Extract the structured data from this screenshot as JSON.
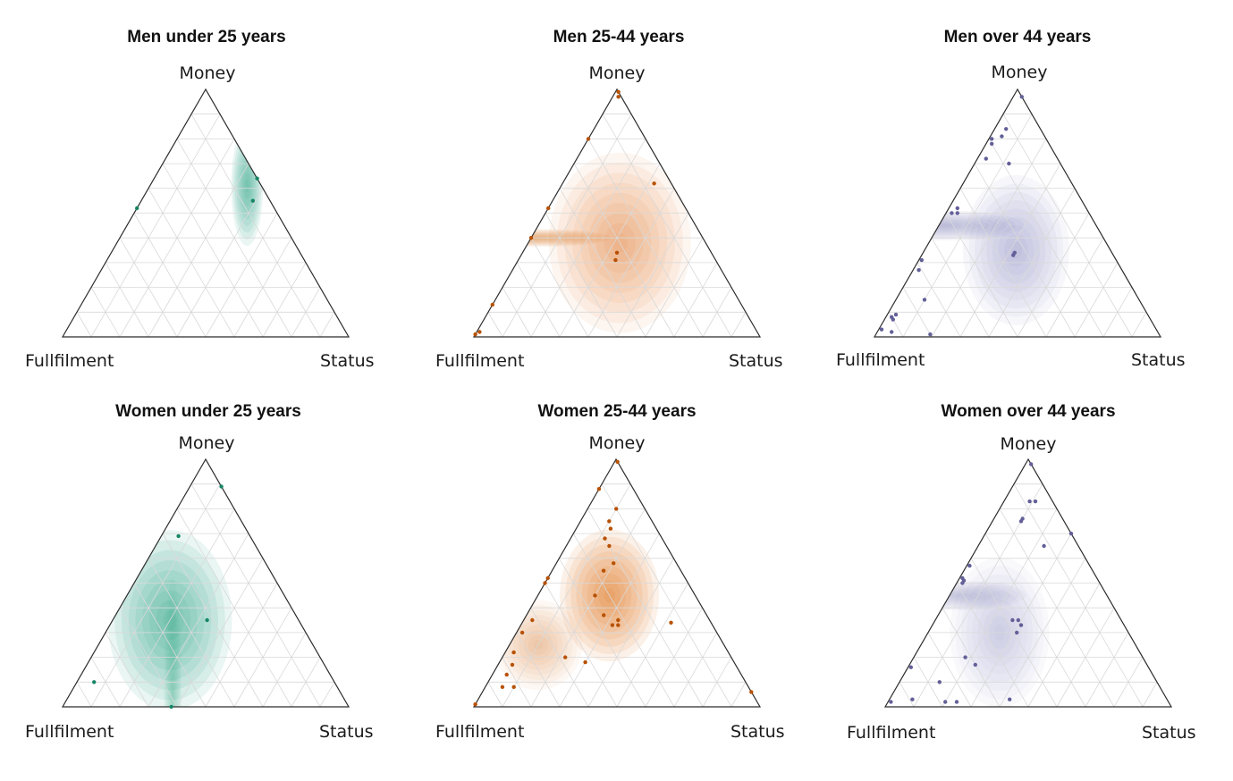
{
  "chart_data": [
    {
      "type": "ternary-density",
      "title": "Men under 25 years",
      "axes": {
        "top": "Money",
        "left": "Fullfilment",
        "right": "Status"
      },
      "color": "#1b9e77",
      "points": [
        [
          0.64,
          0.0,
          0.36
        ],
        [
          0.55,
          0.06,
          0.39
        ],
        [
          0.52,
          0.48,
          0.0
        ]
      ],
      "density": [
        {
          "center": [
            0.61,
            0.05,
            0.34
          ],
          "spread": [
            0.09,
            0.2
          ],
          "weight": 1.0
        }
      ]
    },
    {
      "type": "ternary-density",
      "title": "Men 25-44 years",
      "axes": {
        "top": "Money",
        "left": "Fullfilment",
        "right": "Status"
      },
      "color": "#d95f02",
      "points": [
        [
          0.99,
          0.0,
          0.01
        ],
        [
          0.97,
          0.01,
          0.02
        ],
        [
          0.8,
          0.2,
          0.0
        ],
        [
          0.62,
          0.06,
          0.32
        ],
        [
          0.34,
          0.33,
          0.33
        ],
        [
          0.31,
          0.35,
          0.34
        ],
        [
          0.4,
          0.6,
          0.0
        ],
        [
          0.52,
          0.48,
          0.0
        ],
        [
          0.13,
          0.87,
          0.0
        ],
        [
          0.02,
          0.97,
          0.01
        ],
        [
          0.01,
          0.99,
          0.0
        ]
      ],
      "density": [
        {
          "center": [
            0.38,
            0.3,
            0.32
          ],
          "spread": [
            0.4,
            0.3
          ],
          "weight": 0.7
        },
        {
          "center": [
            0.4,
            0.6,
            0.0
          ],
          "spread": [
            0.45,
            0.03
          ],
          "weight": 0.8
        }
      ]
    },
    {
      "type": "ternary-density",
      "title": "Men over 44 years",
      "axes": {
        "top": "Money",
        "left": "Fullfilment",
        "right": "Status"
      },
      "color": "#7570b3",
      "points": [
        [
          0.97,
          0.0,
          0.03
        ],
        [
          0.84,
          0.12,
          0.04
        ],
        [
          0.8,
          0.19,
          0.01
        ],
        [
          0.78,
          0.2,
          0.02
        ],
        [
          0.81,
          0.15,
          0.04
        ],
        [
          0.72,
          0.25,
          0.03
        ],
        [
          0.7,
          0.18,
          0.12
        ],
        [
          0.5,
          0.48,
          0.02
        ],
        [
          0.5,
          0.46,
          0.04
        ],
        [
          0.52,
          0.45,
          0.03
        ],
        [
          0.34,
          0.34,
          0.32
        ],
        [
          0.33,
          0.35,
          0.32
        ],
        [
          0.31,
          0.68,
          0.01
        ],
        [
          0.27,
          0.71,
          0.02
        ],
        [
          0.15,
          0.75,
          0.1
        ],
        [
          0.09,
          0.88,
          0.03
        ],
        [
          0.08,
          0.9,
          0.02
        ],
        [
          0.07,
          0.9,
          0.03
        ],
        [
          0.03,
          0.96,
          0.01
        ],
        [
          0.02,
          0.93,
          0.05
        ],
        [
          0.01,
          0.8,
          0.19
        ]
      ],
      "density": [
        {
          "center": [
            0.35,
            0.33,
            0.32
          ],
          "spread": [
            0.3,
            0.25
          ],
          "weight": 0.6
        },
        {
          "center": [
            0.45,
            0.53,
            0.02
          ],
          "spread": [
            0.45,
            0.05
          ],
          "weight": 0.7
        }
      ]
    },
    {
      "type": "ternary-density",
      "title": "Women under 25 years",
      "axes": {
        "top": "Money",
        "left": "Fullfilment",
        "right": "Status"
      },
      "color": "#1b9e77",
      "points": [
        [
          0.89,
          0.0,
          0.11
        ],
        [
          0.69,
          0.25,
          0.06
        ],
        [
          0.35,
          0.32,
          0.33
        ],
        [
          0.1,
          0.84,
          0.06
        ],
        [
          0.0,
          0.62,
          0.38
        ]
      ],
      "density": [
        {
          "center": [
            0.35,
            0.45,
            0.2
          ],
          "spread": [
            0.35,
            0.3
          ],
          "weight": 1.0
        },
        {
          "center": [
            0.03,
            0.6,
            0.37
          ],
          "spread": [
            0.05,
            0.4
          ],
          "weight": 0.5
        }
      ]
    },
    {
      "type": "ternary-density",
      "title": "Women 25-44 years",
      "axes": {
        "top": "Money",
        "left": "Fullfilment",
        "right": "Status"
      },
      "color": "#d95f02",
      "points": [
        [
          0.99,
          0.0,
          0.01
        ],
        [
          0.88,
          0.12,
          0.0
        ],
        [
          0.8,
          0.1,
          0.1
        ],
        [
          0.75,
          0.15,
          0.1
        ],
        [
          0.72,
          0.16,
          0.12
        ],
        [
          0.68,
          0.2,
          0.12
        ],
        [
          0.65,
          0.2,
          0.15
        ],
        [
          0.58,
          0.22,
          0.2
        ],
        [
          0.55,
          0.27,
          0.18
        ],
        [
          0.52,
          0.48,
          0.0
        ],
        [
          0.5,
          0.5,
          0.0
        ],
        [
          0.45,
          0.35,
          0.2
        ],
        [
          0.37,
          0.36,
          0.27
        ],
        [
          0.35,
          0.32,
          0.33
        ],
        [
          0.33,
          0.35,
          0.32
        ],
        [
          0.33,
          0.33,
          0.34
        ],
        [
          0.34,
          0.14,
          0.52
        ],
        [
          0.35,
          0.62,
          0.03
        ],
        [
          0.3,
          0.68,
          0.02
        ],
        [
          0.22,
          0.75,
          0.03
        ],
        [
          0.2,
          0.58,
          0.22
        ],
        [
          0.18,
          0.52,
          0.3
        ],
        [
          0.17,
          0.78,
          0.05
        ],
        [
          0.13,
          0.82,
          0.05
        ],
        [
          0.08,
          0.86,
          0.06
        ],
        [
          0.08,
          0.82,
          0.1
        ],
        [
          0.06,
          0.0,
          0.94
        ],
        [
          0.01,
          0.99,
          0.0
        ]
      ],
      "density": [
        {
          "center": [
            0.45,
            0.3,
            0.25
          ],
          "spread": [
            0.28,
            0.22
          ],
          "weight": 1.0
        },
        {
          "center": [
            0.25,
            0.65,
            0.1
          ],
          "spread": [
            0.25,
            0.15
          ],
          "weight": 0.5
        }
      ]
    },
    {
      "type": "ternary-density",
      "title": "Women over 44 years",
      "axes": {
        "top": "Money",
        "left": "Fullfilment",
        "right": "Status"
      },
      "color": "#7570b3",
      "points": [
        [
          0.98,
          0.0,
          0.02
        ],
        [
          0.83,
          0.08,
          0.09
        ],
        [
          0.83,
          0.06,
          0.11
        ],
        [
          0.76,
          0.14,
          0.1
        ],
        [
          0.75,
          0.15,
          0.1
        ],
        [
          0.7,
          0.0,
          0.3
        ],
        [
          0.65,
          0.12,
          0.23
        ],
        [
          0.57,
          0.42,
          0.01
        ],
        [
          0.52,
          0.47,
          0.01
        ],
        [
          0.51,
          0.47,
          0.02
        ],
        [
          0.5,
          0.48,
          0.02
        ],
        [
          0.35,
          0.36,
          0.29
        ],
        [
          0.35,
          0.38,
          0.27
        ],
        [
          0.33,
          0.36,
          0.31
        ],
        [
          0.3,
          0.39,
          0.31
        ],
        [
          0.2,
          0.62,
          0.18
        ],
        [
          0.17,
          0.6,
          0.23
        ],
        [
          0.16,
          0.83,
          0.01
        ],
        [
          0.1,
          0.76,
          0.14
        ],
        [
          0.03,
          0.89,
          0.08
        ],
        [
          0.02,
          0.78,
          0.2
        ],
        [
          0.02,
          0.74,
          0.24
        ],
        [
          0.03,
          0.55,
          0.42
        ],
        [
          0.02,
          0.97,
          0.01
        ]
      ],
      "density": [
        {
          "center": [
            0.3,
            0.45,
            0.25
          ],
          "spread": [
            0.28,
            0.25
          ],
          "weight": 0.5
        },
        {
          "center": [
            0.45,
            0.53,
            0.02
          ],
          "spread": [
            0.4,
            0.05
          ],
          "weight": 0.55
        }
      ]
    }
  ]
}
